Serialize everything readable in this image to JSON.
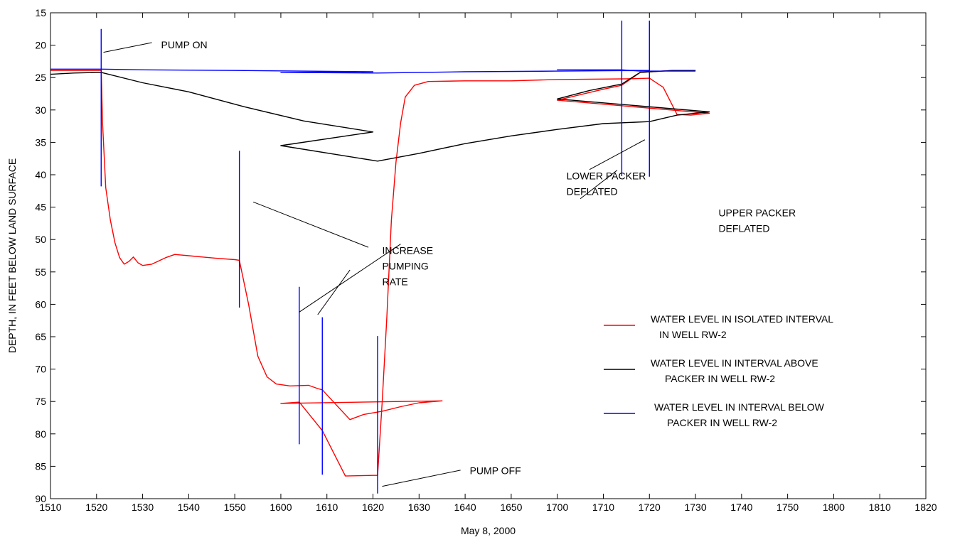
{
  "chart_data": {
    "type": "line",
    "xlabel": "May 8, 2000",
    "ylabel": "DEPTH, IN FEET BELOW LAND SURFACE",
    "xlim": [
      1510,
      1820
    ],
    "ylim": [
      15,
      90
    ],
    "y_inverted": true,
    "x_ticks": [
      "1510",
      "1520",
      "1530",
      "1540",
      "1550",
      "1600",
      "1610",
      "1620",
      "1630",
      "1640",
      "1650",
      "1700",
      "1710",
      "1720",
      "1730",
      "1740",
      "1750",
      "1800",
      "1810",
      "1820"
    ],
    "y_ticks": [
      15,
      20,
      25,
      30,
      35,
      40,
      45,
      50,
      55,
      60,
      65,
      70,
      75,
      80,
      85,
      90
    ],
    "grid": false,
    "legend_position": "center-right",
    "series": [
      {
        "name": "WATER LEVEL IN ISOLATED INTERVAL IN WELL RW-2",
        "legend_lines": [
          "WATER LEVEL IN ISOLATED INTERVAL",
          "IN WELL RW-2"
        ],
        "color": "#ff0000",
        "points": [
          [
            1510,
            23.9
          ],
          [
            1521,
            23.9
          ],
          [
            1521.3,
            32
          ],
          [
            1522,
            42
          ],
          [
            1523,
            47
          ],
          [
            1524,
            50.5
          ],
          [
            1525,
            52.8
          ],
          [
            1526,
            53.8
          ],
          [
            1527,
            53.4
          ],
          [
            1528,
            52.7
          ],
          [
            1529,
            53.6
          ],
          [
            1530,
            54
          ],
          [
            1532,
            53.8
          ],
          [
            1535,
            52.8
          ],
          [
            1537,
            52.3
          ],
          [
            1540,
            52.5
          ],
          [
            1543,
            52.7
          ],
          [
            1546,
            52.9
          ],
          [
            1550,
            53.1
          ],
          [
            1551,
            53.2
          ],
          [
            1553,
            60
          ],
          [
            1555,
            68
          ],
          [
            1557,
            71.2
          ],
          [
            1559,
            72.3
          ],
          [
            1562,
            72.6
          ],
          [
            1566,
            72.5
          ],
          [
            1568,
            73
          ],
          [
            1569,
            73.2
          ],
          [
            1572,
            75.5
          ],
          [
            1575,
            77.8
          ],
          [
            1578,
            77
          ],
          [
            1582,
            76.5
          ],
          [
            1586,
            75.8
          ],
          [
            1590,
            75.2
          ],
          [
            1595,
            74.9
          ],
          [
            1600,
            75.3
          ],
          [
            1604,
            75.1
          ],
          [
            1609,
            79.5
          ],
          [
            1614,
            86.5
          ],
          [
            1620,
            86.4
          ],
          [
            1621,
            86.4
          ],
          [
            1622,
            75
          ],
          [
            1623,
            62
          ],
          [
            1624,
            47
          ],
          [
            1625,
            38
          ],
          [
            1626,
            32
          ],
          [
            1627,
            28
          ],
          [
            1629,
            26.2
          ],
          [
            1632,
            25.6
          ],
          [
            1640,
            25.5
          ],
          [
            1650,
            25.5
          ],
          [
            1660,
            25.3
          ],
          [
            1675,
            25.2
          ],
          [
            1680,
            25.1
          ],
          [
            1683,
            26.5
          ],
          [
            1686,
            30.7
          ],
          [
            1689,
            30.8
          ],
          [
            1693,
            30.5
          ],
          [
            1700,
            28.5
          ],
          [
            1707,
            27.3
          ],
          [
            1710,
            26.8
          ],
          [
            1714,
            26.2
          ],
          [
            1718,
            24.2
          ],
          [
            1725,
            23.9
          ],
          [
            1730,
            23.9
          ]
        ]
      },
      {
        "name": "WATER LEVEL IN INTERVAL ABOVE PACKER IN WELL RW-2",
        "legend_lines": [
          "WATER LEVEL IN INTERVAL ABOVE",
          "PACKER IN WELL RW-2"
        ],
        "color": "#000000",
        "points": [
          [
            1510,
            24.5
          ],
          [
            1515,
            24.3
          ],
          [
            1521,
            24.2
          ],
          [
            1530,
            25.8
          ],
          [
            1540,
            27.2
          ],
          [
            1552,
            29.5
          ],
          [
            1565,
            31.7
          ],
          [
            1580,
            33.4
          ],
          [
            1600,
            35.5
          ],
          [
            1621,
            37.9
          ],
          [
            1630,
            36.7
          ],
          [
            1640,
            35.2
          ],
          [
            1650,
            34
          ],
          [
            1660,
            33
          ],
          [
            1670,
            32.1
          ],
          [
            1680,
            31.8
          ],
          [
            1686,
            30.8
          ],
          [
            1693,
            30.3
          ],
          [
            1700,
            28.3
          ],
          [
            1707,
            27
          ],
          [
            1714,
            26
          ],
          [
            1718,
            24.2
          ],
          [
            1725,
            23.9
          ],
          [
            1730,
            23.9
          ]
        ]
      },
      {
        "name": "WATER LEVEL IN INTERVAL BELOW PACKER IN WELL RW-2",
        "legend_lines": [
          "WATER LEVEL IN INTERVAL BELOW",
          "PACKER IN WELL RW-2"
        ],
        "color": "#0000ff",
        "points": [
          [
            1510,
            23.7
          ],
          [
            1521,
            23.7
          ],
          [
            1530,
            23.8
          ],
          [
            1550,
            23.9
          ],
          [
            1580,
            24.1
          ],
          [
            1600,
            24.2
          ],
          [
            1621,
            24.3
          ],
          [
            1640,
            24.1
          ],
          [
            1660,
            24
          ],
          [
            1680,
            23.9
          ],
          [
            1700,
            23.8
          ],
          [
            1714,
            23.8
          ],
          [
            1718,
            24
          ],
          [
            1730,
            24
          ]
        ]
      }
    ],
    "event_markers": [
      {
        "x": 1521,
        "y_top": 17.5,
        "y_bottom": 41.8
      },
      {
        "x": 1551,
        "y_top": 36.3,
        "y_bottom": 60.5
      },
      {
        "x": 1569,
        "y_top": 62,
        "y_bottom": 86.3
      },
      {
        "x": 1604,
        "y_top": 57.3,
        "y_bottom": 81.6
      },
      {
        "x": 1621,
        "y_top": 64.9,
        "y_bottom": 89.2
      },
      {
        "x": 1680,
        "y_top": 16.2,
        "y_bottom": 40.3
      },
      {
        "x": 1714,
        "y_top": 16.2,
        "y_bottom": 40.2
      }
    ],
    "annotations": [
      {
        "lines": [
          "PUMP ON"
        ],
        "text_x": 1534,
        "text_y": 20.5,
        "anchor": "start",
        "leader": [
          [
            1532,
            19.6
          ],
          [
            1521.5,
            21.1
          ]
        ]
      },
      {
        "lines": [
          "INCREASE",
          "PUMPING",
          "RATE"
        ],
        "text_x": 1582,
        "text_y": 52.2,
        "anchor": "start",
        "leaders": [
          [
            [
              1579,
              51.2
            ],
            [
              1554,
              44.2
            ]
          ],
          [
            [
              1568,
              61.6
            ],
            [
              1575,
              54.7
            ]
          ],
          [
            [
              1604,
              61.2
            ],
            [
              1586,
              50.7
            ]
          ]
        ]
      },
      {
        "lines": [
          "PUMP OFF"
        ],
        "text_x": 1641,
        "text_y": 86.2,
        "anchor": "start",
        "leader": [
          [
            1639,
            85.6
          ],
          [
            1622,
            88.1
          ]
        ]
      },
      {
        "lines": [
          "LOWER PACKER",
          "DEFLATED"
        ],
        "text_x": 1662,
        "text_y": 40.7,
        "anchor": "start",
        "leader": [
          [
            1667,
            39.2
          ],
          [
            1679,
            34.6
          ]
        ]
      },
      {
        "lines": [
          "UPPER PACKER",
          "DEFLATED"
        ],
        "text_x": 1695,
        "text_y": 46.4,
        "anchor": "start",
        "leader": [
          [
            1705,
            43.7
          ],
          [
            1713,
            39.3
          ]
        ]
      }
    ]
  }
}
